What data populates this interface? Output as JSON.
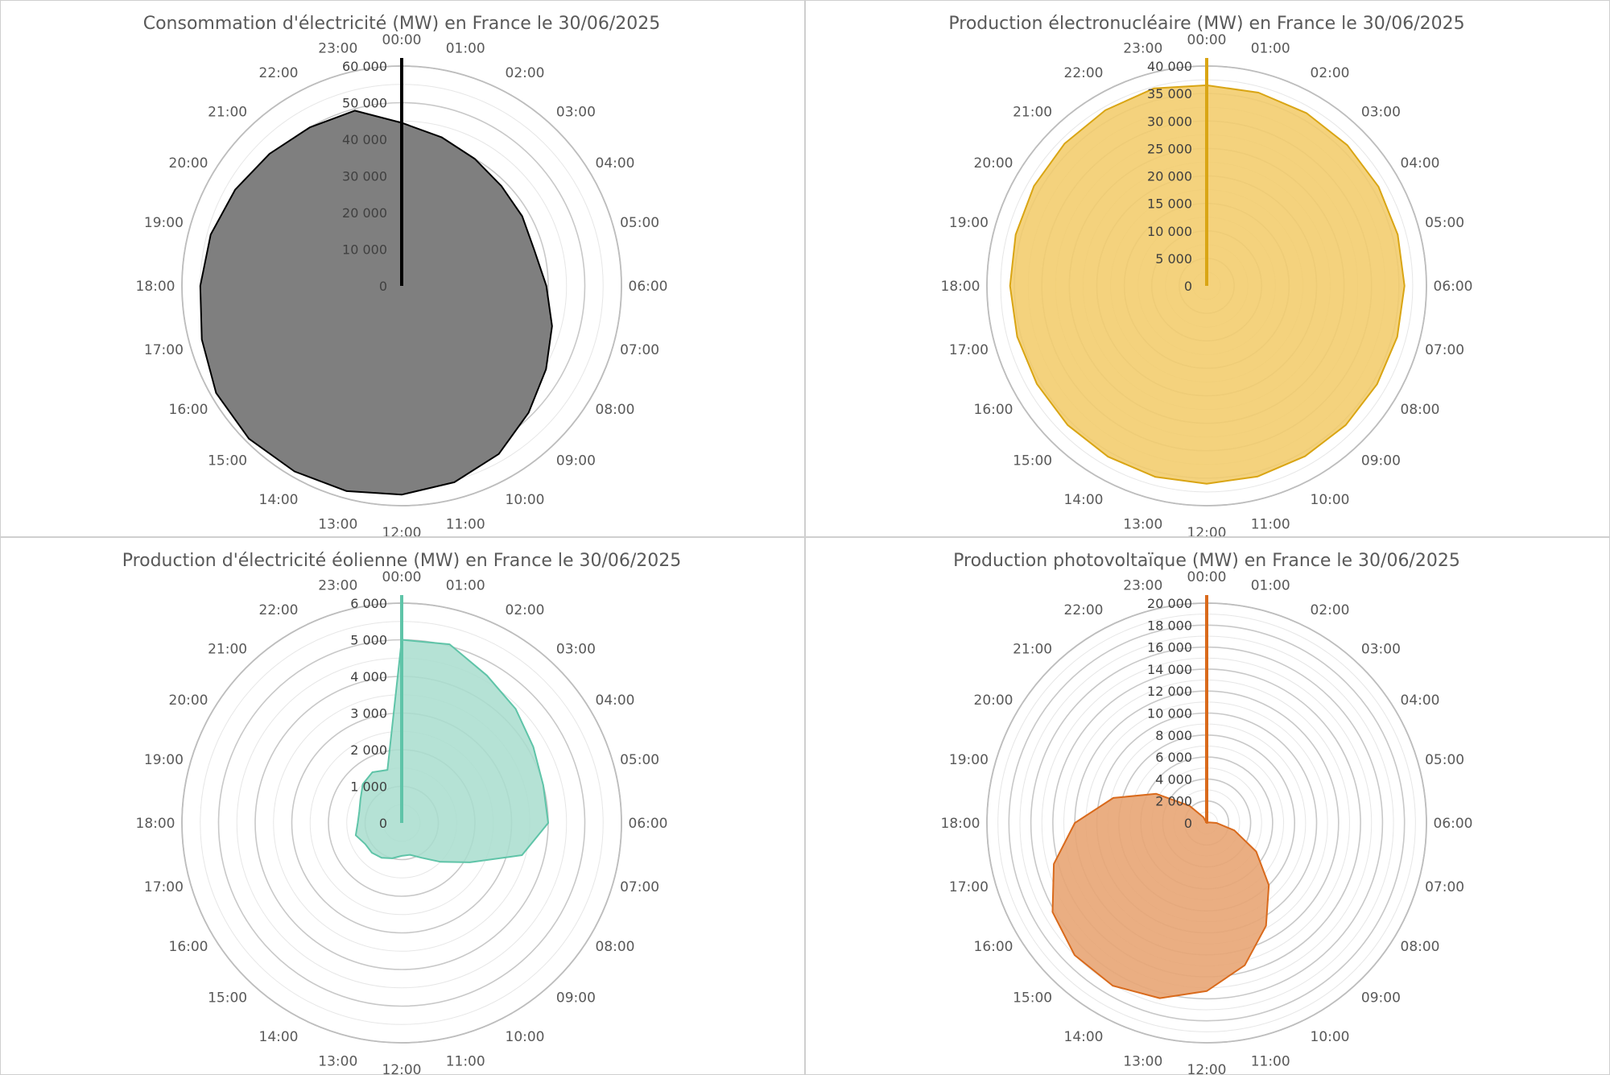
{
  "chart_data": [
    {
      "type": "radar",
      "title": "Consommation d'électricité (MW) en France le 30/06/2025",
      "categories": [
        "00:00",
        "01:00",
        "02:00",
        "03:00",
        "04:00",
        "05:00",
        "06:00",
        "07:00",
        "08:00",
        "09:00",
        "10:00",
        "11:00",
        "12:00",
        "13:00",
        "14:00",
        "15:00",
        "16:00",
        "17:00",
        "18:00",
        "19:00",
        "20:00",
        "21:00",
        "22:00",
        "23:00"
      ],
      "rlim": [
        0,
        60000
      ],
      "ticks": [
        0,
        10000,
        20000,
        30000,
        40000,
        50000,
        60000
      ],
      "tick_labels": [
        "0",
        "10 000",
        "20 000",
        "30 000",
        "40 000",
        "50 000",
        "60 000"
      ],
      "minor_step": 5000,
      "color": "#000000",
      "fill": "#7f7f7f",
      "fill_opacity": 1,
      "series": [
        {
          "values": [
            44500,
            42000,
            40000,
            38500,
            38000,
            37500,
            39500,
            42500,
            45500,
            49000,
            53000,
            55500,
            57000,
            58000,
            58500,
            59000,
            58500,
            56500,
            55000,
            54000,
            52500,
            51000,
            50000,
            49500
          ]
        }
      ]
    },
    {
      "type": "radar",
      "title": "Production électronucléaire (MW) en France le 30/06/2025",
      "categories": [
        "00:00",
        "01:00",
        "02:00",
        "03:00",
        "04:00",
        "05:00",
        "06:00",
        "07:00",
        "08:00",
        "09:00",
        "10:00",
        "11:00",
        "12:00",
        "13:00",
        "14:00",
        "15:00",
        "16:00",
        "17:00",
        "18:00",
        "19:00",
        "20:00",
        "21:00",
        "22:00",
        "23:00"
      ],
      "rlim": [
        0,
        40000
      ],
      "ticks": [
        0,
        5000,
        10000,
        15000,
        20000,
        25000,
        30000,
        35000,
        40000
      ],
      "tick_labels": [
        "0",
        "5 000",
        "10 000",
        "15 000",
        "20 000",
        "25 000",
        "30 000",
        "35 000",
        "40 000"
      ],
      "minor_step": 2500,
      "color": "#d9a514",
      "fill": "#f2cc6b",
      "fill_opacity": 0.88,
      "series": [
        {
          "values": [
            36500,
            36400,
            36300,
            36200,
            36100,
            36000,
            36000,
            35900,
            35800,
            35800,
            35800,
            35900,
            36000,
            36000,
            35900,
            35800,
            35700,
            35700,
            35800,
            36000,
            36300,
            36600,
            36900,
            37200
          ]
        }
      ]
    },
    {
      "type": "radar",
      "title": "Production d'électricité éolienne (MW) en France le 30/06/2025",
      "categories": [
        "00:00",
        "01:00",
        "02:00",
        "03:00",
        "04:00",
        "05:00",
        "06:00",
        "07:00",
        "08:00",
        "09:00",
        "10:00",
        "11:00",
        "12:00",
        "13:00",
        "14:00",
        "15:00",
        "16:00",
        "17:00",
        "18:00",
        "19:00",
        "20:00",
        "21:00",
        "22:00",
        "23:00"
      ],
      "rlim": [
        0,
        6000
      ],
      "ticks": [
        0,
        1000,
        2000,
        3000,
        4000,
        5000,
        6000
      ],
      "tick_labels": [
        "0",
        "1 000",
        "2 000",
        "3 000",
        "4 000",
        "5 000",
        "6 000"
      ],
      "minor_step": 500,
      "color": "#5fc4a8",
      "fill": "#a8ddce",
      "fill_opacity": 0.85,
      "series": [
        {
          "values": [
            5000,
            5050,
            4650,
            4400,
            4150,
            4000,
            4000,
            3400,
            2150,
            1500,
            1100,
            900,
            900,
            1000,
            1100,
            1150,
            1150,
            1300,
            1200,
            1200,
            1300,
            1500,
            1600,
            1500
          ]
        }
      ]
    },
    {
      "type": "radar",
      "title": "Production photovoltaïque (MW) en France le 30/06/2025",
      "categories": [
        "00:00",
        "01:00",
        "02:00",
        "03:00",
        "04:00",
        "05:00",
        "06:00",
        "07:00",
        "08:00",
        "09:00",
        "10:00",
        "11:00",
        "12:00",
        "13:00",
        "14:00",
        "15:00",
        "16:00",
        "17:00",
        "18:00",
        "19:00",
        "20:00",
        "21:00",
        "22:00",
        "23:00"
      ],
      "rlim": [
        0,
        20000
      ],
      "ticks": [
        0,
        2000,
        4000,
        6000,
        8000,
        10000,
        12000,
        14000,
        16000,
        18000,
        20000
      ],
      "tick_labels": [
        "0",
        "2 000",
        "4 000",
        "6 000",
        "8 000",
        "10 000",
        "12 000",
        "14 000",
        "16 000",
        "18 000",
        "20 000"
      ],
      "minor_step": 1000,
      "color": "#d96a1c",
      "fill": "#e8a574",
      "fill_opacity": 0.9,
      "series": [
        {
          "values": [
            0,
            0,
            0,
            0,
            0,
            200,
            900,
            2600,
            5200,
            8000,
            10800,
            13400,
            15300,
            16500,
            17100,
            17000,
            16200,
            14400,
            12000,
            8800,
            5300,
            2200,
            600,
            0
          ]
        }
      ]
    }
  ]
}
